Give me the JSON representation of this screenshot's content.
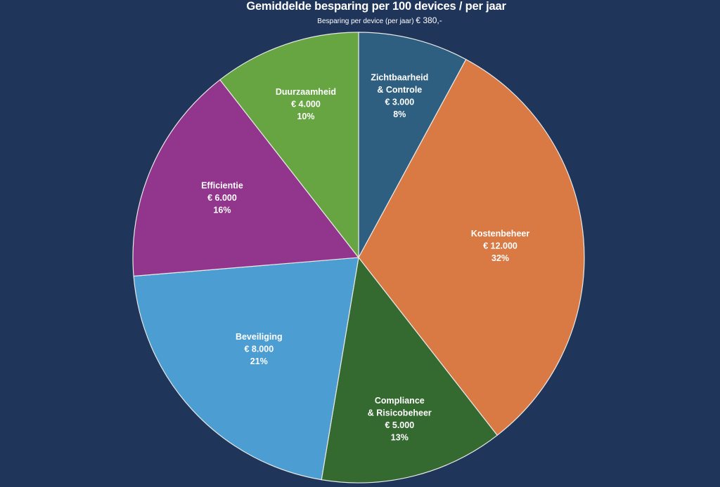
{
  "chart_data": {
    "type": "pie",
    "title": "Gemiddelde besparing  per 100 devices / per jaar",
    "subtitle": {
      "prefix": "Besparing  per device (per jaar)",
      "amount": "€ 380,-"
    },
    "currency": "€",
    "start_angle": "top (12 o'clock), clockwise",
    "slices": [
      {
        "label": [
          "Zichtbaarheid",
          "& Controle"
        ],
        "value": 3000,
        "value_label": "€ 3.000",
        "percent": "8%",
        "color": "#2e5f80"
      },
      {
        "label": [
          "Kostenbeheer"
        ],
        "value": 12000,
        "value_label": "€ 12.000",
        "percent": "32%",
        "color": "#d97944"
      },
      {
        "label": [
          "Compliance",
          "& Risicobeheer"
        ],
        "value": 5000,
        "value_label": "€ 5.000",
        "percent": "13%",
        "color": "#346a2f"
      },
      {
        "label": [
          "Beveiliging"
        ],
        "value": 8000,
        "value_label": "€ 8.000",
        "percent": "21%",
        "color": "#4b9dd2"
      },
      {
        "label": [
          "Efficientie"
        ],
        "value": 6000,
        "value_label": "€ 6.000",
        "percent": "16%",
        "color": "#92358c"
      },
      {
        "label": [
          "Duurzaamheid"
        ],
        "value": 4000,
        "value_label": "€ 4.000",
        "percent": "10%",
        "color": "#67a543"
      }
    ],
    "slice_border_color": "#e8e8e8",
    "legend": "none (labels inside slices)"
  }
}
